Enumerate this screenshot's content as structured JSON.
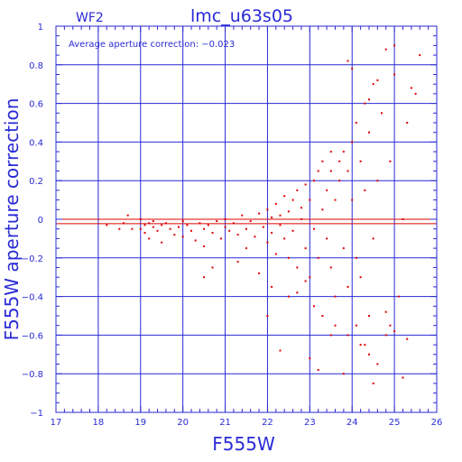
{
  "chart_data": {
    "type": "scatter",
    "title": "lmc_u63s05",
    "chip_label": "WF2",
    "annotation": "Average aperture correction: −0.023",
    "xlabel": "F555W",
    "ylabel": "F555W aperture correction",
    "xlim": [
      17,
      26
    ],
    "ylim": [
      -1,
      1
    ],
    "x_ticks": [
      "17",
      "18",
      "19",
      "20",
      "21",
      "22",
      "23",
      "24",
      "25",
      "26"
    ],
    "y_ticks": [
      "1",
      "0.8",
      "0.6",
      "0.4",
      "0.2",
      "0",
      "−0.2",
      "−0.4",
      "−0.6",
      "−0.8",
      "−1"
    ],
    "grid": true,
    "reference_lines": [
      0,
      -0.023
    ],
    "colors": {
      "axis": "#2a2ad6",
      "grid": "#2a2ad6",
      "points": "#e00000",
      "reference": "#e00000"
    },
    "series": [
      {
        "x": [
          18.2,
          18.5,
          18.6,
          18.7,
          18.8,
          19.0,
          19.0,
          19.1,
          19.1,
          19.2,
          19.2,
          19.3,
          19.3,
          19.4,
          19.5,
          19.5,
          19.6,
          19.7,
          19.8,
          19.9,
          20.0,
          20.0,
          20.1,
          20.2,
          20.3,
          20.4,
          20.5,
          20.5,
          20.6,
          20.7,
          20.8,
          20.9,
          21.0,
          21.0,
          21.1,
          21.2,
          21.3,
          21.4,
          21.5,
          21.5,
          21.6,
          21.7,
          21.8,
          21.9,
          22.0,
          22.0,
          22.1,
          22.1,
          22.2,
          22.2,
          22.3,
          22.3,
          22.4,
          22.4,
          22.5,
          22.5,
          22.6,
          22.6,
          22.7,
          22.7,
          22.8,
          22.8,
          22.9,
          22.9,
          23.0,
          23.0,
          23.1,
          23.1,
          23.2,
          23.2,
          23.3,
          23.3,
          23.4,
          23.4,
          23.5,
          23.5,
          23.6,
          23.6,
          23.7,
          23.7,
          23.8,
          23.8,
          23.9,
          23.9,
          24.0,
          24.0,
          24.1,
          24.1,
          24.2,
          24.2,
          24.3,
          24.3,
          24.4,
          24.4,
          24.5,
          24.5,
          24.6,
          24.7,
          24.8,
          24.9,
          25.0,
          25.1,
          25.2,
          25.3,
          25.5,
          25.6,
          20.5,
          20.7,
          21.3,
          21.8,
          22.1,
          22.5,
          22.9,
          23.1,
          23.3,
          23.6,
          23.9,
          24.2,
          24.4,
          24.6,
          24.9,
          25.2,
          22.0,
          22.3,
          22.7,
          23.0,
          23.2,
          23.5,
          23.8,
          24.1,
          24.3,
          24.5,
          24.8,
          25.0,
          25.3,
          24.4,
          24.6,
          24.8,
          25.0,
          25.4,
          24.0,
          23.9,
          23.5
        ],
        "y": [
          -0.03,
          -0.05,
          -0.02,
          0.02,
          -0.05,
          0.0,
          -0.05,
          -0.03,
          -0.07,
          -0.02,
          -0.1,
          -0.04,
          -0.01,
          -0.06,
          -0.03,
          -0.12,
          -0.02,
          -0.05,
          -0.08,
          -0.04,
          -0.01,
          -0.09,
          -0.03,
          -0.06,
          -0.11,
          -0.02,
          -0.05,
          -0.14,
          -0.03,
          -0.07,
          -0.01,
          -0.1,
          -0.04,
          0.0,
          -0.06,
          -0.02,
          -0.08,
          0.02,
          -0.05,
          -0.15,
          -0.01,
          -0.09,
          0.03,
          -0.04,
          0.05,
          -0.12,
          0.01,
          -0.07,
          0.08,
          -0.18,
          0.02,
          -0.03,
          0.12,
          -0.1,
          0.04,
          -0.2,
          0.1,
          -0.06,
          0.15,
          -0.25,
          0.0,
          0.06,
          0.18,
          -0.15,
          0.1,
          -0.3,
          0.2,
          -0.05,
          0.25,
          -0.2,
          0.05,
          0.3,
          -0.1,
          0.15,
          0.35,
          -0.25,
          0.1,
          -0.4,
          0.3,
          0.2,
          -0.15,
          0.35,
          0.25,
          -0.35,
          0.4,
          0.1,
          -0.2,
          0.5,
          0.3,
          -0.3,
          0.6,
          0.15,
          -0.5,
          0.45,
          0.7,
          -0.1,
          0.2,
          0.55,
          -0.6,
          0.3,
          0.75,
          -0.4,
          0.0,
          0.5,
          0.65,
          0.85,
          -0.3,
          -0.25,
          -0.22,
          -0.28,
          -0.35,
          -0.4,
          -0.32,
          -0.45,
          -0.5,
          -0.55,
          -0.6,
          -0.65,
          -0.7,
          -0.75,
          -0.55,
          -0.82,
          -0.5,
          -0.68,
          -0.38,
          -0.72,
          -0.78,
          -0.6,
          -0.8,
          -0.55,
          -0.65,
          -0.85,
          -0.48,
          -0.58,
          -0.62,
          0.62,
          0.72,
          0.88,
          0.9,
          0.68,
          0.78,
          0.82,
          0.25
        ]
      }
    ]
  }
}
